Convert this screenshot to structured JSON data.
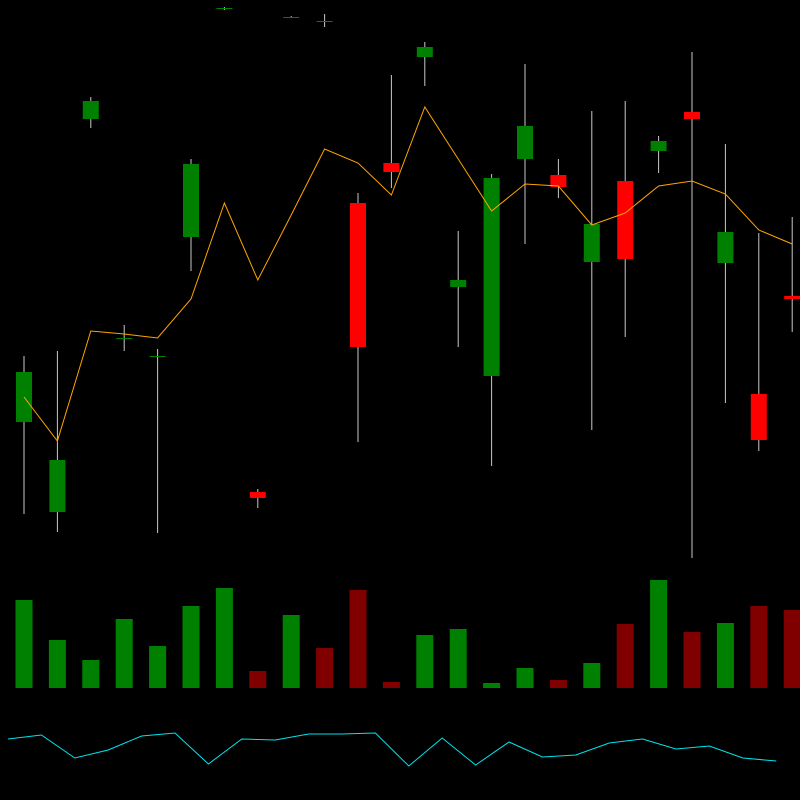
{
  "chart_data": {
    "type": "candlestick",
    "open": [
      378,
      288,
      681,
      462,
      444,
      563,
      791,
      308,
      783,
      779,
      597,
      637,
      743,
      513,
      424,
      641,
      625,
      538,
      619,
      649,
      688,
      537,
      406,
      504
    ],
    "high": [
      444,
      449,
      703,
      475,
      451,
      641,
      793,
      311,
      784,
      786,
      607,
      725,
      758,
      569,
      626,
      736,
      641,
      689,
      699,
      664,
      748,
      656,
      567,
      583
    ],
    "low": [
      286,
      268,
      672,
      449,
      267,
      529,
      790,
      292,
      782,
      773,
      358,
      612,
      714,
      453,
      334,
      556,
      602,
      370,
      463,
      627,
      242,
      397,
      349,
      468
    ],
    "close": [
      428,
      340,
      699,
      462,
      444,
      636,
      792,
      302,
      783,
      778,
      453,
      628,
      753,
      520,
      622,
      674,
      613,
      576,
      541,
      659,
      681,
      568,
      360,
      501
    ],
    "ylim": [
      240,
      800
    ],
    "up_color": "#008000",
    "down_color": "#ff0000",
    "wick_color": "#c8c8c8",
    "ma": {
      "color": "#ffa500",
      "values": [
        403,
        359,
        469,
        466,
        462,
        501,
        597,
        520,
        585,
        651,
        637,
        605,
        693,
        641,
        589,
        616,
        614,
        575,
        587,
        614,
        619,
        606,
        570,
        556
      ]
    },
    "volume": {
      "ylim": [
        0,
        120
      ],
      "up_color": "#008000",
      "down_color": "#800000",
      "values": [
        88,
        48,
        28,
        69,
        42,
        82,
        100,
        17,
        73,
        40,
        98,
        6,
        53,
        59,
        5,
        20,
        8,
        25,
        64,
        108,
        56,
        65,
        82,
        78
      ]
    },
    "oscillator": {
      "ylim": [
        0,
        100
      ],
      "color": "#00e5ee",
      "values": [
        61,
        65,
        42,
        50,
        64,
        67,
        36,
        61,
        60,
        66,
        66,
        67,
        34,
        62,
        35,
        58,
        43,
        45,
        57,
        61,
        51,
        54,
        42,
        39
      ]
    }
  }
}
